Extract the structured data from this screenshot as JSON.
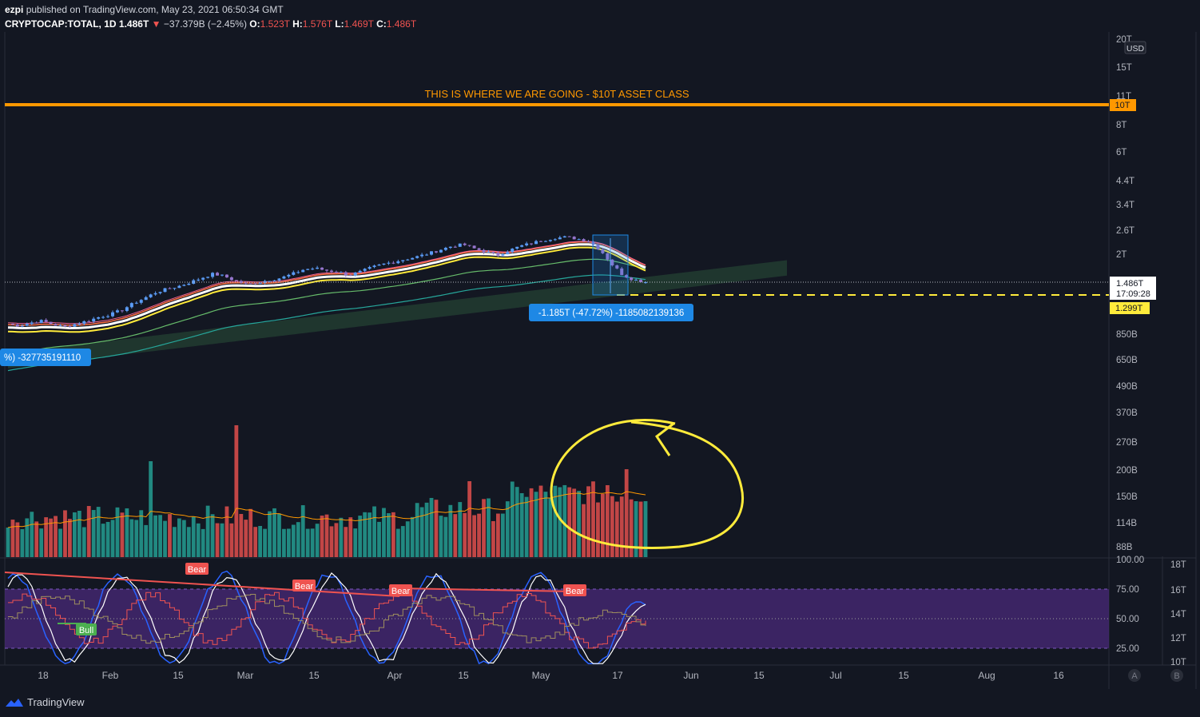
{
  "header": {
    "author": "ezpi",
    "published_text": "published on TradingView.com, May 23, 2021 06:50:34 GMT",
    "symbol": "CRYPTOCAP:TOTAL, 1D",
    "last": "1.486T",
    "change": "−37.379B (−2.45%)",
    "o_label": "O:",
    "o_value": "1.523T",
    "h_label": "H:",
    "h_value": "1.576T",
    "l_label": "L:",
    "l_value": "1.469T",
    "c_label": "C:",
    "c_value": "1.486T"
  },
  "annotations": {
    "target_text": "THIS IS WHERE WE ARE GOING - $10T ASSET CLASS",
    "measure_text": "-1.185T (-47.72%) -1185082139136",
    "left_measure_text": "%) -327735191110",
    "bull_label": "Bull",
    "bear_label": "Bear"
  },
  "price_axis": {
    "currency": "USD",
    "ticks": [
      "20T",
      "15T",
      "11T",
      "8T",
      "6T",
      "4.4T",
      "3.4T",
      "2.6T",
      "2T",
      "850B",
      "650B",
      "490B",
      "370B",
      "270B",
      "200B",
      "150B",
      "114B",
      "88B"
    ],
    "last_label": "1.486T",
    "countdown": "17:09:28",
    "support_label": "1.299T",
    "target_label": "10T"
  },
  "osc_axis": {
    "left_ticks": [
      "100.00",
      "75.00",
      "50.00",
      "25.00"
    ],
    "right_ticks": [
      "18T",
      "16T",
      "14T",
      "12T",
      "10T"
    ]
  },
  "time_axis": {
    "labels": [
      "18",
      "Feb",
      "15",
      "Mar",
      "15",
      "Apr",
      "15",
      "May",
      "17",
      "Jun",
      "15",
      "Jul",
      "15",
      "Aug",
      "16"
    ],
    "buttons": [
      "A",
      "B"
    ]
  },
  "colors": {
    "up": "#26a69a",
    "down": "#ef5350",
    "candle_up": "#5b9cf6",
    "candle_down": "#9575cd",
    "target_line": "#ff9800",
    "support_line": "#ffeb3b",
    "circle": "#ffeb3b",
    "rsi_band": "#4a2a7a",
    "measure_box": "#1e88e5"
  },
  "footer": {
    "brand": "TradingView"
  },
  "chart_data": {
    "type": "candlestick",
    "scale": "log",
    "target_price": "10T",
    "support_price": "1.299T",
    "last_price": "1.486T",
    "volume_spikes_note": "",
    "close_series_approx_T": [
      0.95,
      0.93,
      0.96,
      0.98,
      0.94,
      0.92,
      0.95,
      0.98,
      1.02,
      1.05,
      1.1,
      1.18,
      1.25,
      1.33,
      1.38,
      1.42,
      1.48,
      1.55,
      1.62,
      1.58,
      1.5,
      1.45,
      1.48,
      1.52,
      1.55,
      1.62,
      1.7,
      1.72,
      1.68,
      1.65,
      1.6,
      1.66,
      1.74,
      1.8,
      1.85,
      1.9,
      1.95,
      2.02,
      2.1,
      2.18,
      2.22,
      2.12,
      2.05,
      1.98,
      2.08,
      2.18,
      2.25,
      2.32,
      2.38,
      2.4,
      2.36,
      2.3,
      2.1,
      1.8,
      1.6,
      1.52,
      1.486
    ]
  }
}
